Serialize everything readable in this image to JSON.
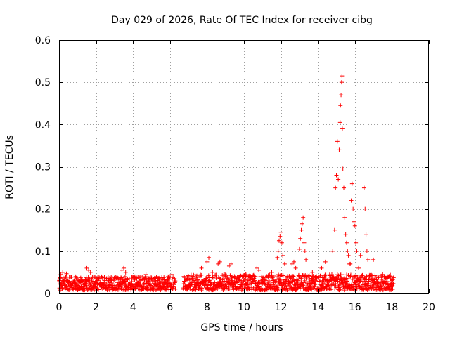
{
  "chart_data": {
    "type": "scatter",
    "title": "Day 029 of 2026, Rate Of TEC Index for receiver cibg",
    "xlabel": "GPS time / hours",
    "ylabel": "ROTI / TECUs",
    "xlim": [
      0,
      20
    ],
    "ylim": [
      0,
      0.6
    ],
    "x_ticks": [
      "0",
      "2",
      "4",
      "6",
      "8",
      "10",
      "12",
      "14",
      "16",
      "18",
      "20"
    ],
    "y_ticks": [
      "0",
      "0.1",
      "0.2",
      "0.3",
      "0.4",
      "0.5",
      "0.6"
    ],
    "grid": true,
    "marker": "+",
    "marker_color": "#ff0000",
    "series": [
      {
        "name": "ROTI",
        "baseline_segments": [
          {
            "x_start": 0.0,
            "x_end": 6.3,
            "y_low": 0.008,
            "y_high": 0.04
          },
          {
            "x_start": 6.7,
            "x_end": 18.1,
            "y_low": 0.008,
            "y_high": 0.045
          }
        ],
        "points": [
          [
            0.1,
            0.045
          ],
          [
            0.2,
            0.05
          ],
          [
            0.4,
            0.047
          ],
          [
            0.9,
            0.04
          ],
          [
            1.5,
            0.06
          ],
          [
            1.6,
            0.055
          ],
          [
            1.7,
            0.05
          ],
          [
            2.3,
            0.04
          ],
          [
            3.4,
            0.055
          ],
          [
            3.5,
            0.06
          ],
          [
            3.6,
            0.05
          ],
          [
            4.1,
            0.04
          ],
          [
            4.7,
            0.045
          ],
          [
            5.3,
            0.04
          ],
          [
            5.9,
            0.04
          ],
          [
            6.1,
            0.045
          ],
          [
            7.7,
            0.06
          ],
          [
            8.0,
            0.075
          ],
          [
            8.1,
            0.085
          ],
          [
            8.3,
            0.05
          ],
          [
            8.6,
            0.07
          ],
          [
            8.7,
            0.075
          ],
          [
            9.2,
            0.065
          ],
          [
            9.3,
            0.07
          ],
          [
            10.1,
            0.045
          ],
          [
            10.7,
            0.06
          ],
          [
            10.8,
            0.055
          ],
          [
            11.5,
            0.05
          ],
          [
            11.8,
            0.085
          ],
          [
            11.85,
            0.1
          ],
          [
            11.9,
            0.125
          ],
          [
            11.95,
            0.135
          ],
          [
            12.0,
            0.145
          ],
          [
            12.05,
            0.12
          ],
          [
            12.1,
            0.09
          ],
          [
            12.2,
            0.07
          ],
          [
            12.6,
            0.07
          ],
          [
            12.7,
            0.075
          ],
          [
            12.8,
            0.06
          ],
          [
            13.0,
            0.105
          ],
          [
            13.05,
            0.13
          ],
          [
            13.1,
            0.15
          ],
          [
            13.15,
            0.165
          ],
          [
            13.2,
            0.18
          ],
          [
            13.25,
            0.12
          ],
          [
            13.3,
            0.1
          ],
          [
            13.35,
            0.08
          ],
          [
            13.7,
            0.05
          ],
          [
            14.2,
            0.06
          ],
          [
            14.4,
            0.075
          ],
          [
            14.8,
            0.1
          ],
          [
            14.9,
            0.15
          ],
          [
            14.95,
            0.25
          ],
          [
            15.0,
            0.28
          ],
          [
            15.05,
            0.36
          ],
          [
            15.1,
            0.27
          ],
          [
            15.15,
            0.34
          ],
          [
            15.2,
            0.405
          ],
          [
            15.22,
            0.445
          ],
          [
            15.25,
            0.47
          ],
          [
            15.28,
            0.5
          ],
          [
            15.3,
            0.515
          ],
          [
            15.32,
            0.39
          ],
          [
            15.35,
            0.295
          ],
          [
            15.4,
            0.25
          ],
          [
            15.45,
            0.18
          ],
          [
            15.5,
            0.14
          ],
          [
            15.55,
            0.12
          ],
          [
            15.6,
            0.1
          ],
          [
            15.65,
            0.09
          ],
          [
            15.7,
            0.07
          ],
          [
            15.75,
            0.07
          ],
          [
            15.8,
            0.22
          ],
          [
            15.85,
            0.26
          ],
          [
            15.9,
            0.2
          ],
          [
            15.95,
            0.17
          ],
          [
            16.0,
            0.16
          ],
          [
            16.05,
            0.12
          ],
          [
            16.1,
            0.1
          ],
          [
            16.2,
            0.06
          ],
          [
            16.3,
            0.09
          ],
          [
            16.5,
            0.25
          ],
          [
            16.55,
            0.2
          ],
          [
            16.6,
            0.14
          ],
          [
            16.65,
            0.1
          ],
          [
            16.7,
            0.08
          ],
          [
            17.0,
            0.08
          ],
          [
            17.5,
            0.045
          ],
          [
            17.8,
            0.04
          ],
          [
            18.0,
            0.04
          ]
        ]
      }
    ]
  }
}
